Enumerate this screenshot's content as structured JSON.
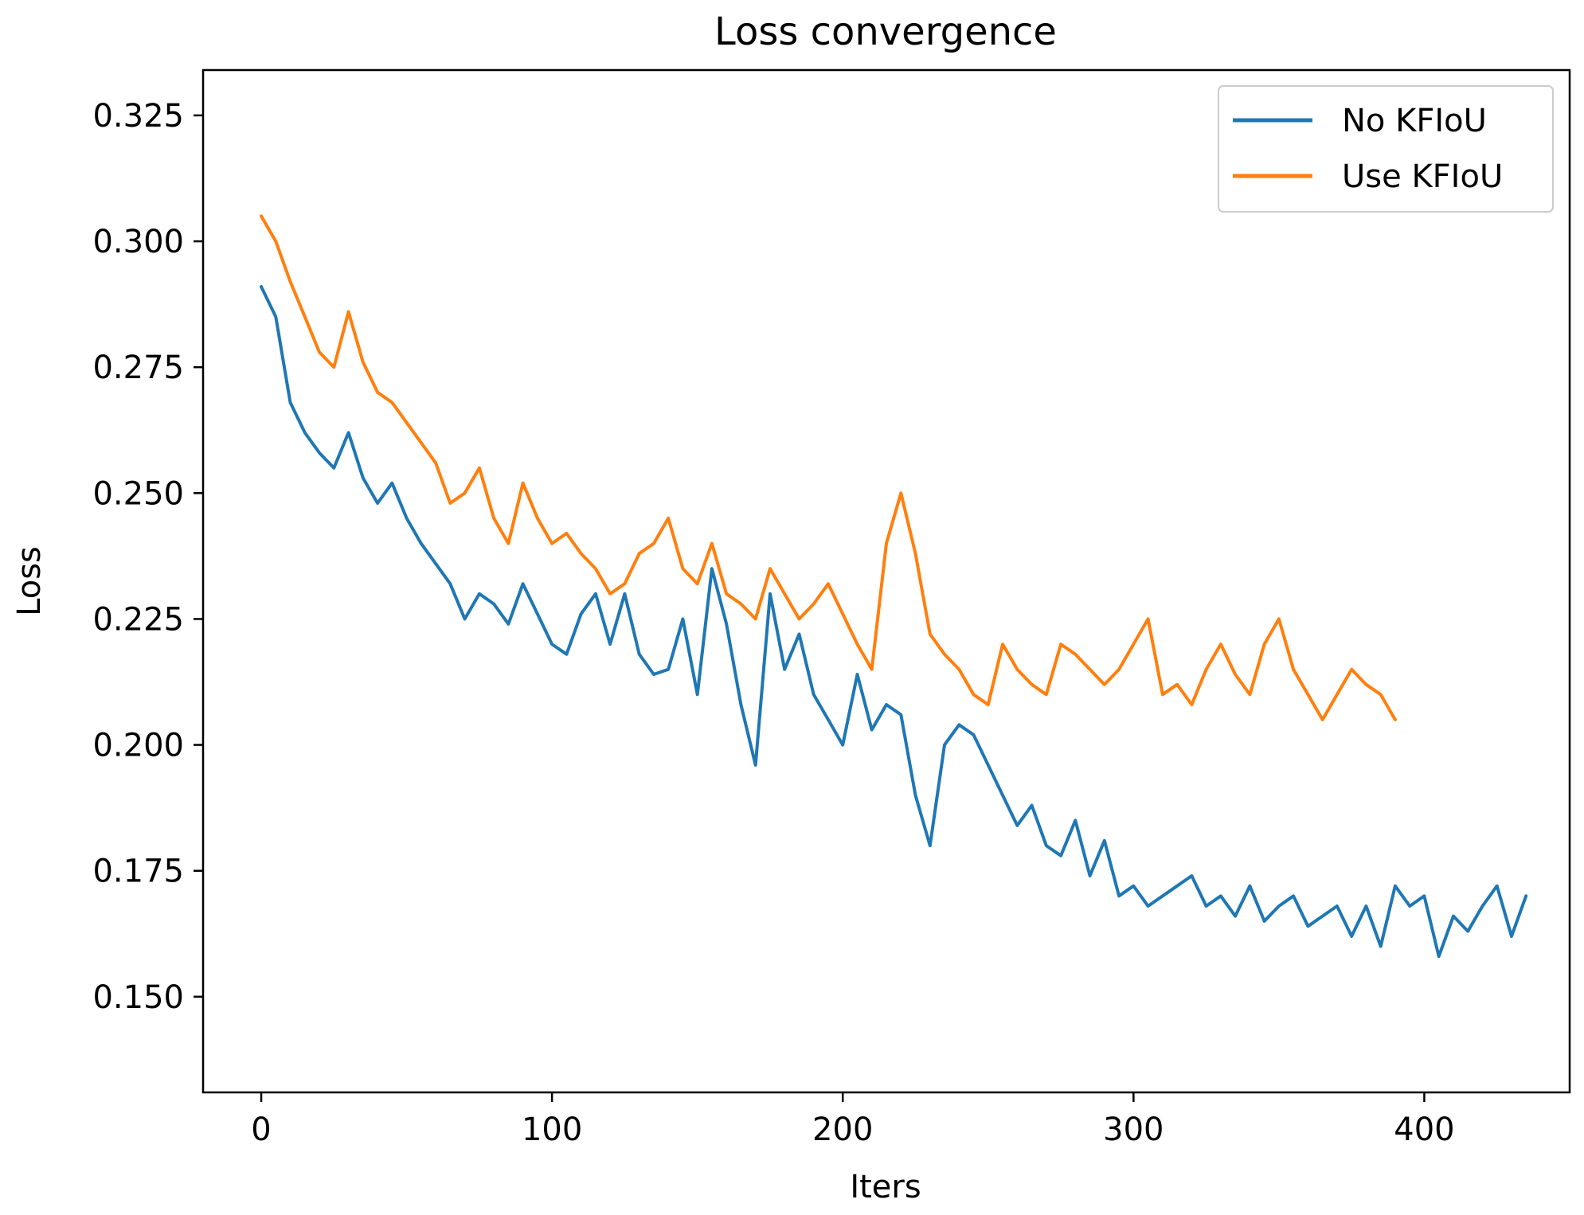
{
  "chart_data": {
    "type": "line",
    "title": "Loss convergence",
    "xlabel": "Iters",
    "ylabel": "Loss",
    "xlim": [
      -20,
      450
    ],
    "ylim": [
      0.131,
      0.334
    ],
    "xticks": [
      0,
      100,
      200,
      300,
      400
    ],
    "xtick_labels": [
      "0",
      "100",
      "200",
      "300",
      "400"
    ],
    "yticks": [
      0.15,
      0.175,
      0.2,
      0.225,
      0.25,
      0.275,
      0.3,
      0.325
    ],
    "ytick_labels": [
      "0.150",
      "0.175",
      "0.200",
      "0.225",
      "0.250",
      "0.275",
      "0.300",
      "0.325"
    ],
    "grid": false,
    "legend_position": "top-right",
    "series": [
      {
        "name": "No KFIoU",
        "color": "#1f77b4",
        "x_start": 0,
        "x_step": 5,
        "values": [
          0.291,
          0.285,
          0.268,
          0.262,
          0.258,
          0.255,
          0.262,
          0.253,
          0.248,
          0.252,
          0.245,
          0.24,
          0.236,
          0.232,
          0.225,
          0.23,
          0.228,
          0.224,
          0.232,
          0.226,
          0.22,
          0.218,
          0.226,
          0.23,
          0.22,
          0.23,
          0.218,
          0.214,
          0.215,
          0.225,
          0.21,
          0.235,
          0.224,
          0.208,
          0.196,
          0.23,
          0.215,
          0.222,
          0.21,
          0.205,
          0.2,
          0.214,
          0.203,
          0.208,
          0.206,
          0.19,
          0.18,
          0.2,
          0.204,
          0.202,
          0.196,
          0.19,
          0.184,
          0.188,
          0.18,
          0.178,
          0.185,
          0.174,
          0.181,
          0.17,
          0.172,
          0.168,
          0.17,
          0.172,
          0.174,
          0.168,
          0.17,
          0.166,
          0.172,
          0.165,
          0.168,
          0.17,
          0.164,
          0.166,
          0.168,
          0.162,
          0.168,
          0.16,
          0.172,
          0.168,
          0.17,
          0.158,
          0.166,
          0.163,
          0.168,
          0.172,
          0.162,
          0.17
        ]
      },
      {
        "name": "Use KFIoU",
        "color": "#ff7f0e",
        "x_start": 0,
        "x_step": 5,
        "values": [
          0.305,
          0.3,
          0.292,
          0.285,
          0.278,
          0.275,
          0.286,
          0.276,
          0.27,
          0.268,
          0.264,
          0.26,
          0.256,
          0.248,
          0.25,
          0.255,
          0.245,
          0.24,
          0.252,
          0.245,
          0.24,
          0.242,
          0.238,
          0.235,
          0.23,
          0.232,
          0.238,
          0.24,
          0.245,
          0.235,
          0.232,
          0.24,
          0.23,
          0.228,
          0.225,
          0.235,
          0.23,
          0.225,
          0.228,
          0.232,
          0.226,
          0.22,
          0.215,
          0.24,
          0.25,
          0.238,
          0.222,
          0.218,
          0.215,
          0.21,
          0.208,
          0.22,
          0.215,
          0.212,
          0.21,
          0.22,
          0.218,
          0.215,
          0.212,
          0.215,
          0.22,
          0.225,
          0.21,
          0.212,
          0.208,
          0.215,
          0.22,
          0.214,
          0.21,
          0.22,
          0.225,
          0.215,
          0.21,
          0.205,
          0.21,
          0.215,
          0.212,
          0.21,
          0.205
        ]
      }
    ]
  }
}
